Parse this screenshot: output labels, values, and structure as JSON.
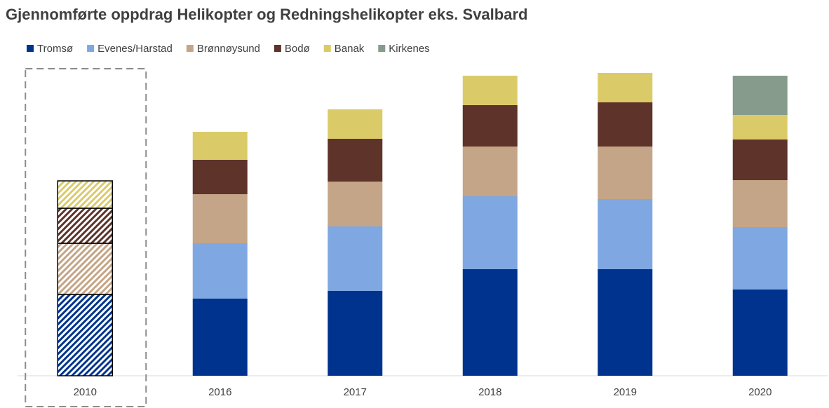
{
  "chart_data": {
    "type": "stacked_bar",
    "title": "Gjennomførte oppdrag Helikopter og Redningshelikopter eks. Svalbard",
    "categories": [
      "2010",
      "2016",
      "2017",
      "2018",
      "2019",
      "2020"
    ],
    "hatched": [
      true,
      false,
      false,
      false,
      false,
      false
    ],
    "series": [
      {
        "name": "Tromsø",
        "color": "#00338d",
        "values": [
          116,
          110,
          121,
          152,
          152,
          123
        ]
      },
      {
        "name": "Evenes/Harstad",
        "color": "#7fa7e1",
        "values": [
          0,
          79,
          92,
          104,
          100,
          89
        ]
      },
      {
        "name": "Brønnøysund",
        "color": "#c4a587",
        "values": [
          73,
          70,
          64,
          71,
          75,
          67
        ]
      },
      {
        "name": "Bodø",
        "color": "#5e3329",
        "values": [
          50,
          49,
          61,
          59,
          63,
          58
        ]
      },
      {
        "name": "Banak",
        "color": "#dbcb68",
        "values": [
          39,
          40,
          42,
          42,
          42,
          35
        ]
      },
      {
        "name": "Kirkenes",
        "color": "#879b8c",
        "values": [
          0,
          0,
          0,
          0,
          0,
          56
        ]
      }
    ],
    "ylim": [
      0,
      440
    ],
    "legend": "top-left"
  }
}
